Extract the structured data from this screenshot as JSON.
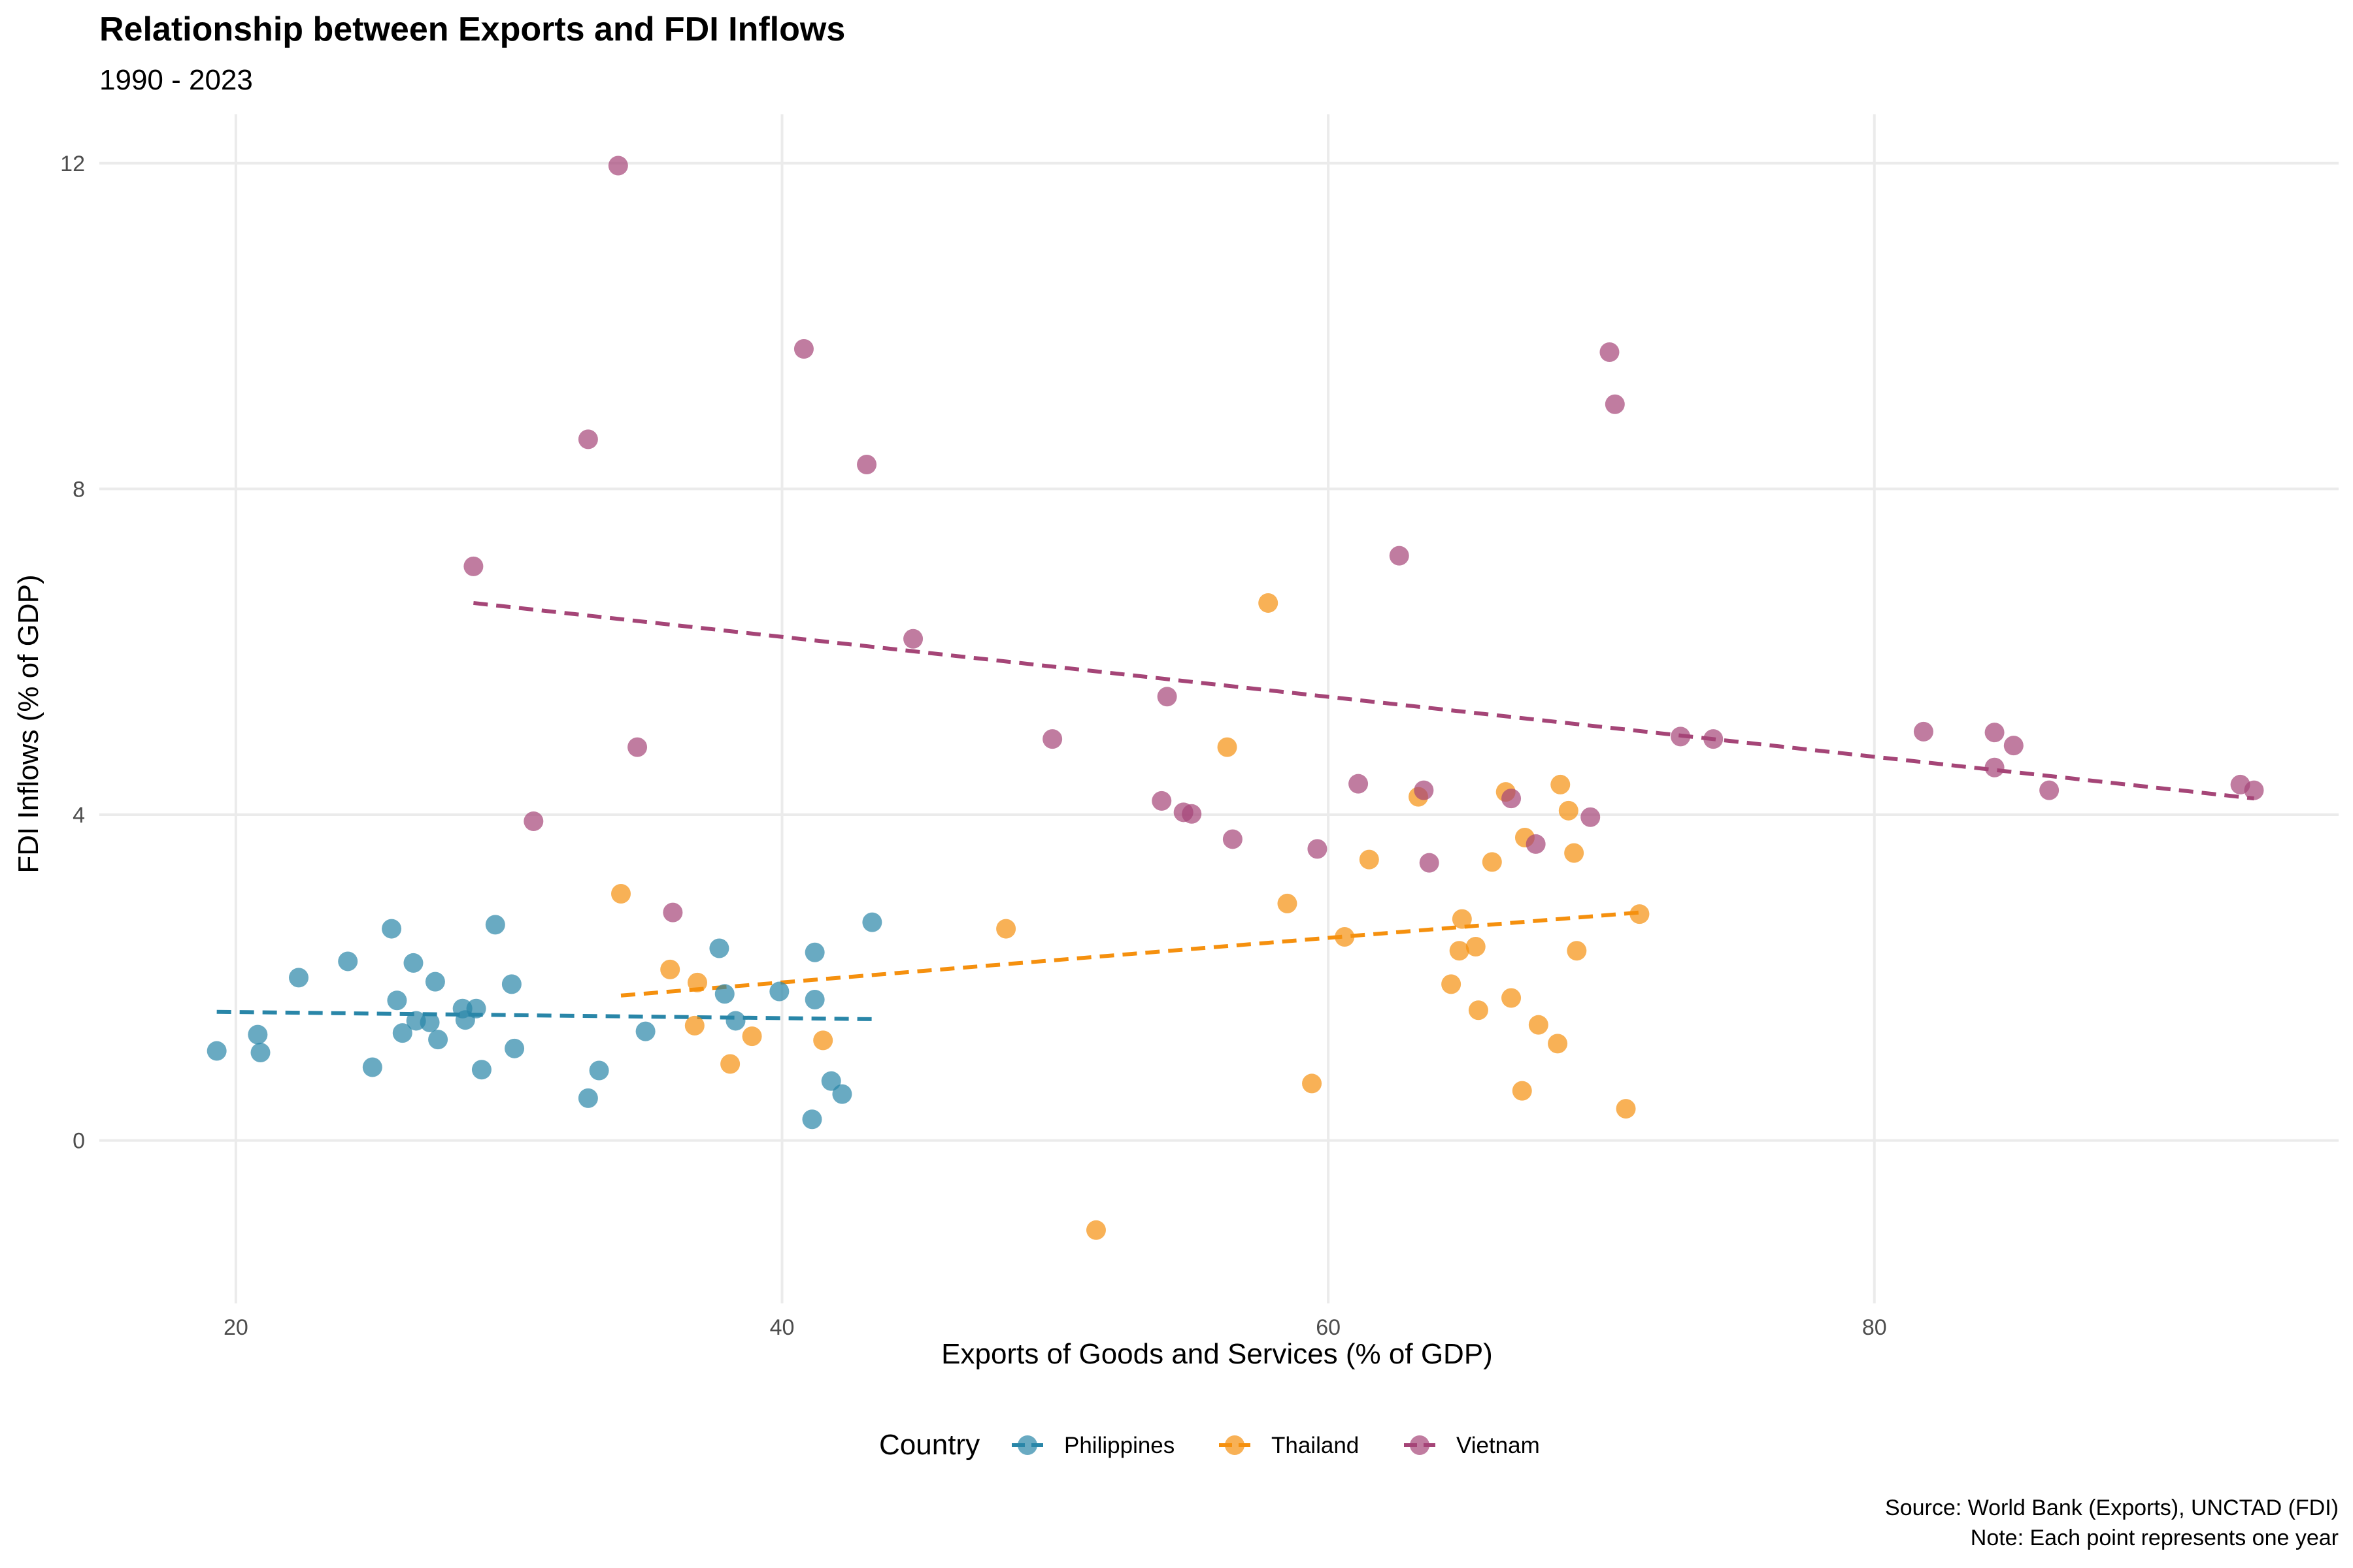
{
  "chart_data": {
    "type": "scatter",
    "title": "Relationship between Exports and FDI Inflows",
    "subtitle": "1990 - 2023",
    "xlabel": "Exports of Goods and Services (% of GDP)",
    "ylabel": "FDI Inflows (% of GDP)",
    "xlim": [
      15,
      97
    ],
    "ylim": [
      -2,
      12.6
    ],
    "x_ticks": [
      20,
      40,
      60,
      80
    ],
    "y_ticks": [
      0,
      4,
      8,
      12
    ],
    "grid": true,
    "legend_position": "bottom",
    "legend_title": "Country",
    "caption": [
      "Source: World Bank (Exports), UNCTAD (FDI)",
      "Note: Each point represents one year"
    ],
    "series": [
      {
        "name": "Philippines",
        "color": "#2986A8",
        "trend": {
          "x": [
            19.3,
            43.3
          ],
          "y": [
            1.58,
            1.49
          ]
        },
        "points": [
          [
            19.3,
            1.1
          ],
          [
            20.8,
            1.3
          ],
          [
            20.9,
            1.08
          ],
          [
            22.3,
            2.0
          ],
          [
            24.1,
            2.2
          ],
          [
            25.0,
            0.9
          ],
          [
            25.7,
            2.6
          ],
          [
            25.9,
            1.72
          ],
          [
            26.1,
            1.32
          ],
          [
            26.5,
            2.18
          ],
          [
            26.6,
            1.47
          ],
          [
            27.1,
            1.45
          ],
          [
            27.3,
            1.95
          ],
          [
            27.4,
            1.24
          ],
          [
            28.3,
            1.62
          ],
          [
            28.4,
            1.48
          ],
          [
            28.8,
            1.62
          ],
          [
            29.0,
            0.87
          ],
          [
            29.5,
            2.65
          ],
          [
            30.1,
            1.92
          ],
          [
            30.2,
            1.13
          ],
          [
            32.9,
            0.52
          ],
          [
            33.3,
            0.86
          ],
          [
            35.0,
            1.34
          ],
          [
            37.7,
            2.36
          ],
          [
            37.9,
            1.8
          ],
          [
            38.3,
            1.47
          ],
          [
            39.9,
            1.83
          ],
          [
            41.1,
            0.26
          ],
          [
            41.2,
            2.31
          ],
          [
            41.2,
            1.73
          ],
          [
            41.8,
            0.73
          ],
          [
            42.2,
            0.57
          ],
          [
            43.3,
            2.68
          ]
        ]
      },
      {
        "name": "Thailand",
        "color": "#F5900E",
        "trend": {
          "x": [
            34.1,
            71.4
          ],
          "y": [
            1.78,
            2.8
          ]
        },
        "points": [
          [
            34.1,
            3.03
          ],
          [
            35.9,
            2.1
          ],
          [
            36.8,
            1.41
          ],
          [
            36.9,
            1.94
          ],
          [
            38.1,
            0.94
          ],
          [
            38.9,
            1.28
          ],
          [
            41.5,
            1.23
          ],
          [
            48.2,
            2.6
          ],
          [
            51.5,
            -1.1
          ],
          [
            56.3,
            4.83
          ],
          [
            57.8,
            6.6
          ],
          [
            58.5,
            2.91
          ],
          [
            59.4,
            0.7
          ],
          [
            60.6,
            2.5
          ],
          [
            61.5,
            3.45
          ],
          [
            63.3,
            4.22
          ],
          [
            64.5,
            1.92
          ],
          [
            64.8,
            2.33
          ],
          [
            64.9,
            2.72
          ],
          [
            65.4,
            2.38
          ],
          [
            65.5,
            1.6
          ],
          [
            66.0,
            3.42
          ],
          [
            66.5,
            4.28
          ],
          [
            66.7,
            1.75
          ],
          [
            67.1,
            0.61
          ],
          [
            67.2,
            3.72
          ],
          [
            67.7,
            1.42
          ],
          [
            68.4,
            1.19
          ],
          [
            68.5,
            4.37
          ],
          [
            68.8,
            4.05
          ],
          [
            69.0,
            3.53
          ],
          [
            69.1,
            2.33
          ],
          [
            70.9,
            0.39
          ],
          [
            71.4,
            2.78
          ]
        ]
      },
      {
        "name": "Vietnam",
        "color": "#A54577",
        "trend": {
          "x": [
            28.7,
            93.9
          ],
          "y": [
            6.6,
            4.2
          ]
        },
        "points": [
          [
            28.7,
            7.05
          ],
          [
            30.9,
            3.92
          ],
          [
            32.9,
            8.61
          ],
          [
            34.0,
            11.97
          ],
          [
            34.7,
            4.83
          ],
          [
            36.0,
            2.8
          ],
          [
            40.8,
            9.72
          ],
          [
            43.1,
            8.3
          ],
          [
            44.8,
            6.16
          ],
          [
            49.9,
            4.93
          ],
          [
            53.9,
            4.17
          ],
          [
            54.1,
            5.45
          ],
          [
            54.7,
            4.03
          ],
          [
            55.0,
            4.01
          ],
          [
            56.5,
            3.7
          ],
          [
            59.6,
            3.58
          ],
          [
            61.1,
            4.38
          ],
          [
            62.6,
            7.18
          ],
          [
            63.5,
            4.3
          ],
          [
            63.7,
            3.41
          ],
          [
            66.7,
            4.2
          ],
          [
            67.6,
            3.64
          ],
          [
            69.6,
            3.97
          ],
          [
            70.3,
            9.68
          ],
          [
            70.5,
            9.04
          ],
          [
            72.9,
            4.96
          ],
          [
            74.1,
            4.93
          ],
          [
            81.8,
            5.02
          ],
          [
            84.4,
            4.58
          ],
          [
            84.4,
            5.01
          ],
          [
            85.1,
            4.85
          ],
          [
            86.4,
            4.3
          ],
          [
            93.4,
            4.37
          ],
          [
            93.9,
            4.3
          ]
        ]
      }
    ]
  }
}
